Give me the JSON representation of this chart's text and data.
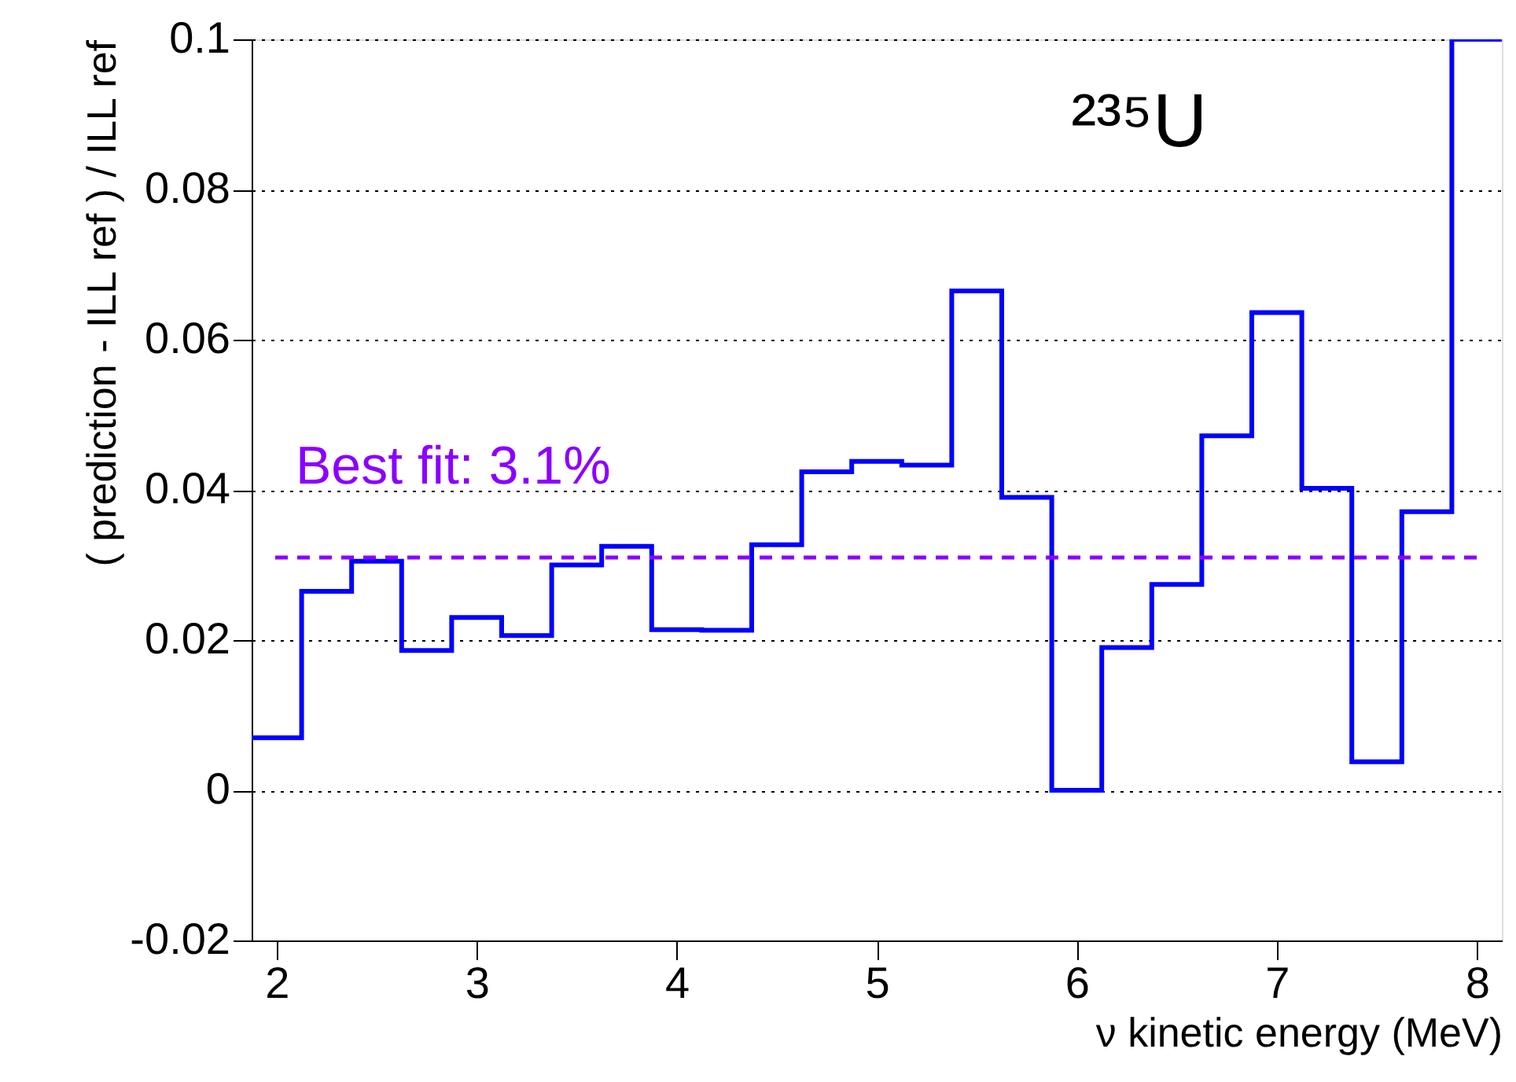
{
  "chart_data": {
    "type": "histogram",
    "xlabel": "ν kinetic energy (MeV)",
    "ylabel": "( prediction - ILL ref ) / ILL ref",
    "bins": [
      1.875,
      2.125,
      2.375,
      2.625,
      2.875,
      3.125,
      3.375,
      3.625,
      3.875,
      4.125,
      4.375,
      4.625,
      4.875,
      5.125,
      5.375,
      5.625,
      5.875,
      6.125,
      6.375,
      6.625,
      6.875,
      7.125,
      7.375,
      7.625,
      7.875,
      8.125
    ],
    "values": [
      0.007,
      0.0265,
      0.0305,
      0.0186,
      0.023,
      0.0206,
      0.03,
      0.0325,
      0.0214,
      0.0213,
      0.0327,
      0.0424,
      0.0438,
      0.0433,
      0.0665,
      0.039,
      0.0,
      0.019,
      0.0274,
      0.0472,
      0.0636,
      0.0402,
      0.0038,
      0.0371,
      0.1
    ],
    "color": "#0000ff",
    "xlim": [
      1.875,
      8.125
    ],
    "xticks": [
      2,
      3,
      4,
      5,
      6,
      7,
      8
    ],
    "ylim": [
      -0.02,
      0.1
    ],
    "yticks": [
      -0.02,
      0,
      0.02,
      0.04,
      0.06,
      0.08,
      0.1
    ],
    "grid": "y",
    "ref_lines": [
      {
        "axis": "y",
        "value": 0.031,
        "label": "Best fit: 3.1%",
        "color": "#8b00ff",
        "line_style": "dashed"
      }
    ],
    "annotations": [
      "²³⁵U"
    ]
  }
}
